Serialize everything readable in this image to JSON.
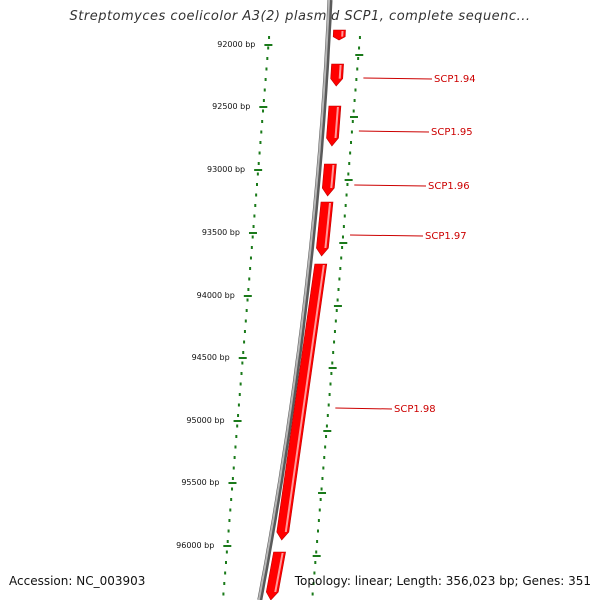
{
  "title": "Streptomyces coelicolor A3(2) plasmid SCP1, complete sequenc...",
  "footer": {
    "accession": "Accession: NC_003903",
    "summary": "Topology: linear; Length: 356,023 bp; Genes: 351"
  },
  "colors": {
    "gene": "#ff0000",
    "gene_label": "#cc0000",
    "ruler": "#1a7a1a",
    "backbone": "#808080"
  },
  "positions": [
    "92000 bp",
    "92500 bp",
    "93000 bp",
    "93500 bp",
    "94000 bp",
    "94500 bp",
    "95000 bp",
    "95500 bp",
    "96000 bp"
  ],
  "genes": [
    {
      "label": "SCP1.94"
    },
    {
      "label": "SCP1.95"
    },
    {
      "label": "SCP1.96"
    },
    {
      "label": "SCP1.97"
    },
    {
      "label": "SCP1.98"
    }
  ]
}
